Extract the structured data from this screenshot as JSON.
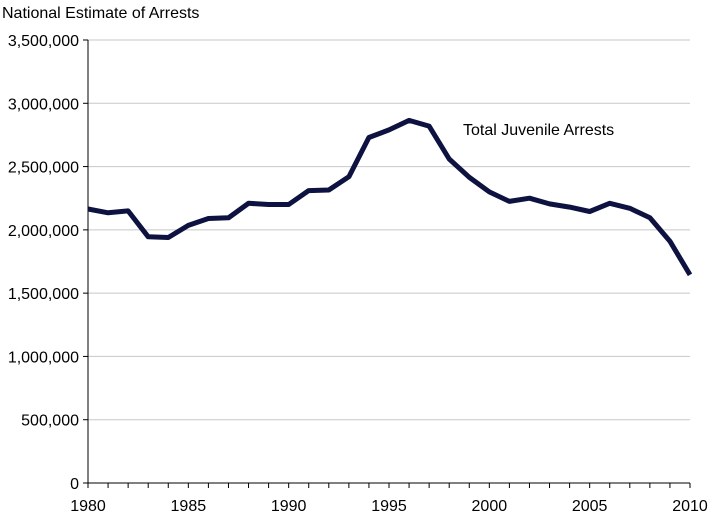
{
  "chart_data": {
    "type": "line",
    "ylabel": "National Estimate of Arrests",
    "ylim": [
      0,
      3500000
    ],
    "xlim": [
      1980,
      2010
    ],
    "grid": true,
    "y_ticks": [
      {
        "value": 0,
        "label": "0"
      },
      {
        "value": 500000,
        "label": "500,000"
      },
      {
        "value": 1000000,
        "label": "1,000,000"
      },
      {
        "value": 1500000,
        "label": "1,500,000"
      },
      {
        "value": 2000000,
        "label": "2,000,000"
      },
      {
        "value": 2500000,
        "label": "2,500,000"
      },
      {
        "value": 3000000,
        "label": "3,000,000"
      },
      {
        "value": 3500000,
        "label": "3,500,000"
      }
    ],
    "x_ticks": [
      {
        "value": 1980,
        "label": "1980"
      },
      {
        "value": 1985,
        "label": "1985"
      },
      {
        "value": 1990,
        "label": "1990"
      },
      {
        "value": 1995,
        "label": "1995"
      },
      {
        "value": 2000,
        "label": "2000"
      },
      {
        "value": 2005,
        "label": "2005"
      },
      {
        "value": 2010,
        "label": "2010"
      }
    ],
    "series": [
      {
        "name": "Total Juvenile Arrests",
        "color": "#0d1240",
        "x": [
          1980,
          1981,
          1982,
          1983,
          1984,
          1985,
          1986,
          1987,
          1988,
          1989,
          1990,
          1991,
          1992,
          1993,
          1994,
          1995,
          1996,
          1997,
          1998,
          1999,
          2000,
          2001,
          2002,
          2003,
          2004,
          2005,
          2006,
          2007,
          2008,
          2009,
          2010
        ],
        "values": [
          2165000,
          2135000,
          2150000,
          1945000,
          1940000,
          2035000,
          2090000,
          2095000,
          2210000,
          2200000,
          2200000,
          2310000,
          2315000,
          2420000,
          2730000,
          2790000,
          2865000,
          2820000,
          2560000,
          2415000,
          2300000,
          2225000,
          2250000,
          2205000,
          2180000,
          2145000,
          2210000,
          2170000,
          2095000,
          1910000,
          1645000
        ]
      }
    ],
    "annotations": [
      {
        "text": "Total Juvenile Arrests",
        "anchor_series": 0
      }
    ]
  }
}
